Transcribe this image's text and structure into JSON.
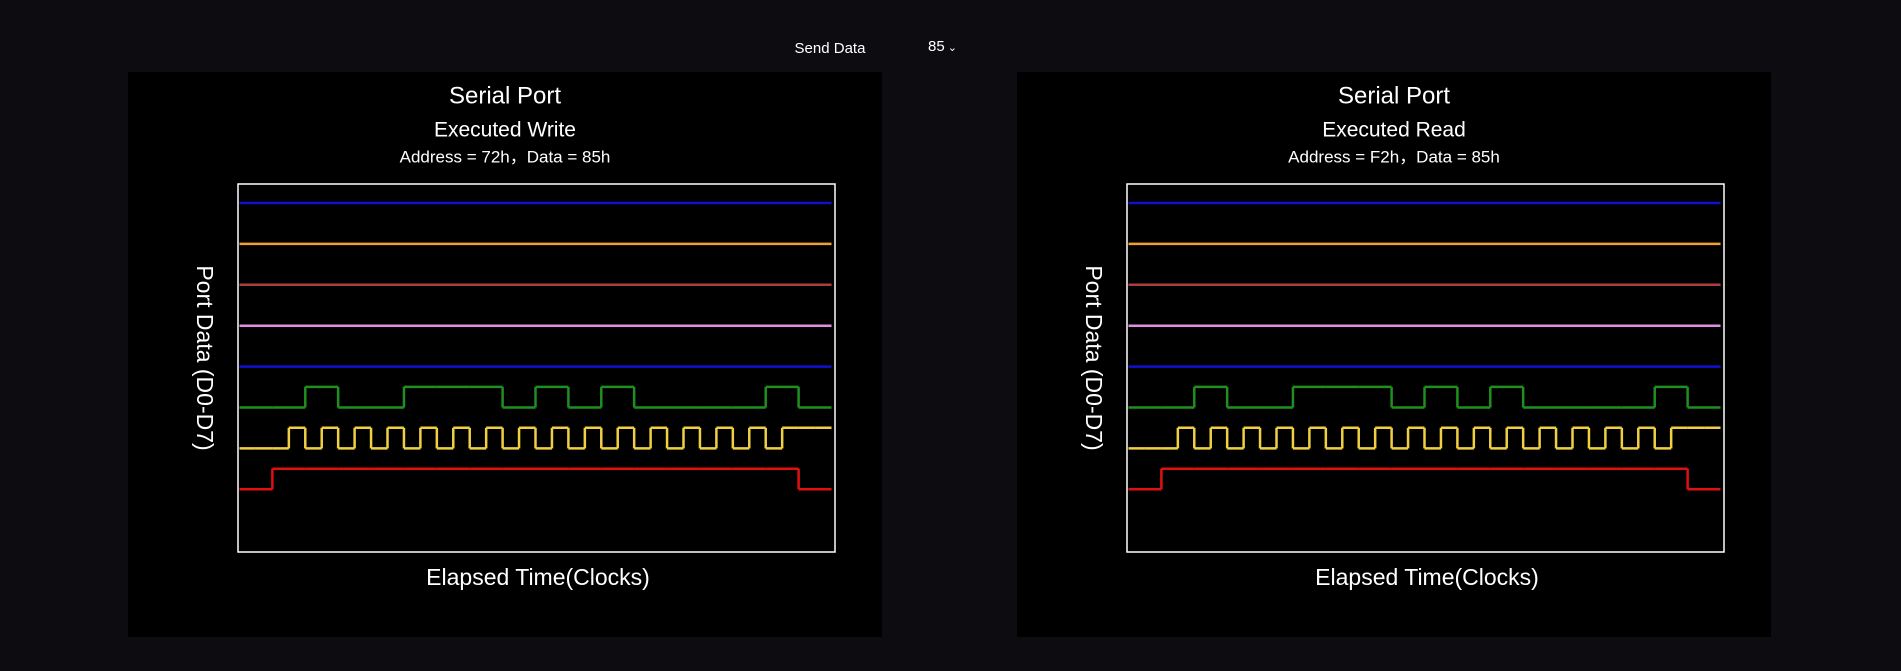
{
  "controls": {
    "label": "Send Data",
    "value": "85"
  },
  "chart_data": [
    {
      "type": "timing",
      "title": "Serial Port",
      "subtitle": "Executed Write",
      "caption": "Address = 72h，Data = 85h",
      "x_label": "Elapsed Time(Clocks)",
      "y_label": "Port Data (D0-D7)",
      "series": [
        {
          "color": "#1010d0",
          "values": [
            0
          ]
        },
        {
          "color": "#f0a030",
          "values": [
            0
          ]
        },
        {
          "color": "#a84040",
          "values": [
            0
          ]
        },
        {
          "color": "#e090e0",
          "values": [
            0
          ]
        },
        {
          "color": "#1010d0",
          "values": [
            0
          ]
        },
        {
          "color": "#1f8f1f",
          "values": [
            0,
            0,
            1,
            0,
            0,
            1,
            1,
            1,
            0,
            1,
            0,
            1,
            0,
            0,
            0,
            0,
            1,
            0
          ]
        },
        {
          "color": "#f0d040",
          "values": [
            0,
            0,
            0,
            1,
            0,
            1,
            0,
            1,
            0,
            1,
            0,
            1,
            0,
            1,
            0,
            1,
            0,
            1,
            0,
            1,
            0,
            1,
            0,
            1,
            0,
            1,
            0,
            1,
            0,
            1,
            0,
            1,
            0,
            1,
            1,
            1
          ]
        },
        {
          "color": "#e01010",
          "values": [
            0,
            1,
            1,
            1,
            1,
            1,
            1,
            1,
            1,
            1,
            1,
            1,
            1,
            1,
            1,
            1,
            1,
            0
          ]
        }
      ]
    },
    {
      "type": "timing",
      "title": "Serial Port",
      "subtitle": "Executed Read",
      "caption": "Address = F2h，Data = 85h",
      "x_label": "Elapsed Time(Clocks)",
      "y_label": "Port Data (D0-D7)",
      "series": [
        {
          "color": "#1010d0",
          "values": [
            0
          ]
        },
        {
          "color": "#f0a030",
          "values": [
            0
          ]
        },
        {
          "color": "#a84040",
          "values": [
            0
          ]
        },
        {
          "color": "#e090e0",
          "values": [
            0
          ]
        },
        {
          "color": "#1010d0",
          "values": [
            0
          ]
        },
        {
          "color": "#1f8f1f",
          "values": [
            0,
            0,
            1,
            0,
            0,
            1,
            1,
            1,
            0,
            1,
            0,
            1,
            0,
            0,
            0,
            0,
            1,
            0
          ]
        },
        {
          "color": "#f0d040",
          "values": [
            0,
            0,
            0,
            1,
            0,
            1,
            0,
            1,
            0,
            1,
            0,
            1,
            0,
            1,
            0,
            1,
            0,
            1,
            0,
            1,
            0,
            1,
            0,
            1,
            0,
            1,
            0,
            1,
            0,
            1,
            0,
            1,
            0,
            1,
            1,
            1
          ]
        },
        {
          "color": "#e01010",
          "values": [
            0,
            1,
            1,
            1,
            1,
            1,
            1,
            1,
            1,
            1,
            1,
            1,
            1,
            1,
            1,
            1,
            1,
            0
          ]
        }
      ]
    }
  ]
}
